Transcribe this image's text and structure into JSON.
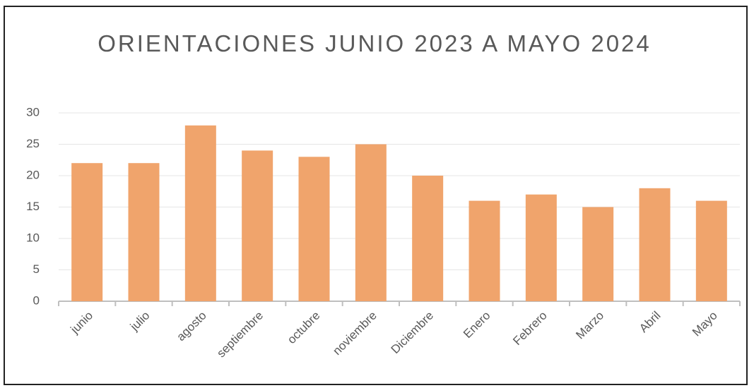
{
  "chart_data": {
    "type": "bar",
    "title": "ORIENTACIONES JUNIO 2023 A MAYO 2024",
    "categories": [
      "junio",
      "julio",
      "agosto",
      "septiembre",
      "octubre",
      "noviembre",
      "Diciembre",
      "Enero",
      "Febrero",
      "Marzo",
      "Abril",
      "Mayo"
    ],
    "values": [
      22,
      22,
      28,
      24,
      23,
      25,
      20,
      16,
      17,
      15,
      18,
      16
    ],
    "color": "#f0a46c",
    "ylim": [
      0,
      30
    ],
    "yticks": [
      0,
      5,
      10,
      15,
      20,
      25,
      30
    ],
    "grid": true
  }
}
